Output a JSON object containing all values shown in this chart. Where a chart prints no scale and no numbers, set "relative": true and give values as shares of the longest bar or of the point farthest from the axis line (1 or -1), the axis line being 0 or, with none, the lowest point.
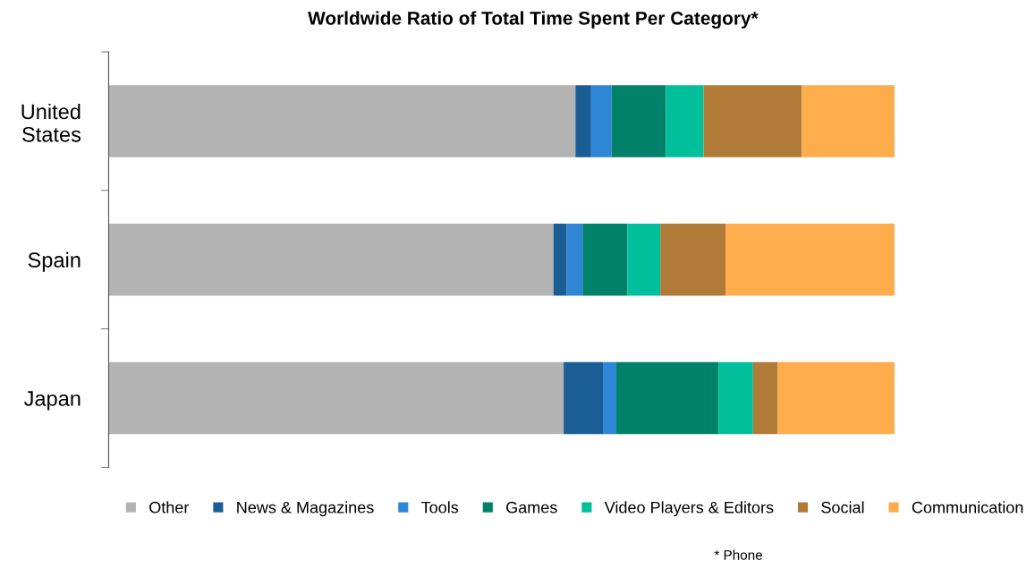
{
  "chart_data": {
    "type": "bar",
    "orientation": "horizontal",
    "stacked": true,
    "relative": true,
    "title": "Worldwide Ratio of Total Time Spent Per Category*",
    "categories": [
      "United\nStates",
      "Spain",
      "Japan"
    ],
    "series": [
      {
        "name": "Other",
        "color": "#b3b3b3",
        "values": [
          0.594,
          0.566,
          0.579
        ]
      },
      {
        "name": "News & Magazines",
        "color": "#1b5e96",
        "values": [
          0.02,
          0.017,
          0.05
        ]
      },
      {
        "name": "Tools",
        "color": "#2f86d6",
        "values": [
          0.026,
          0.02,
          0.017
        ]
      },
      {
        "name": "Games",
        "color": "#00826a",
        "values": [
          0.069,
          0.057,
          0.13
        ]
      },
      {
        "name": "Video Players & Editors",
        "color": "#00bf9a",
        "values": [
          0.048,
          0.042,
          0.044
        ]
      },
      {
        "name": "Social",
        "color": "#b07a38",
        "values": [
          0.125,
          0.083,
          0.031
        ]
      },
      {
        "name": "Communication",
        "color": "#fdad4c",
        "values": [
          0.118,
          0.215,
          0.149
        ]
      }
    ],
    "legend": "bottom",
    "grid": false,
    "annotations": [
      "* Phone"
    ]
  }
}
